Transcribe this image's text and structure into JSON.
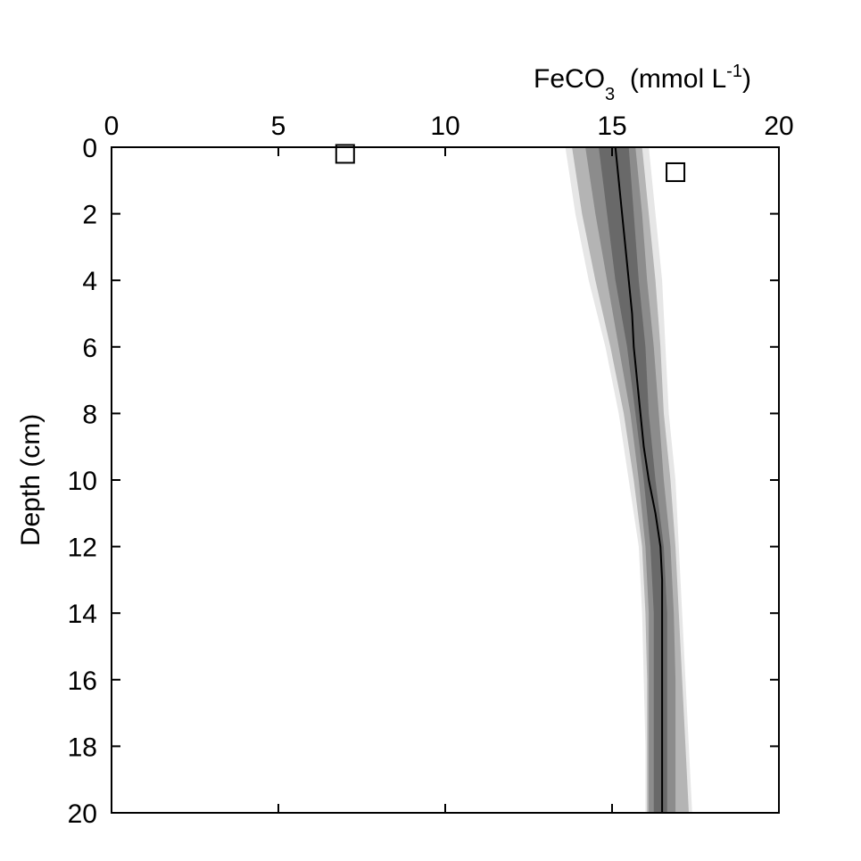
{
  "chart_data": {
    "type": "line",
    "title": "",
    "xlabel": {
      "main": "FeCO",
      "sub": "3",
      "mid": "  (mmol L",
      "sup": "-1",
      "end": ")"
    },
    "ylabel": "Depth (cm)",
    "xlim": [
      0,
      20
    ],
    "ylim": [
      0,
      20
    ],
    "y_inverted": true,
    "x_axis_position": "top",
    "xticks": [
      "0",
      "5",
      "10",
      "15",
      "20"
    ],
    "yticks": [
      "0",
      "2",
      "4",
      "6",
      "8",
      "10",
      "12",
      "14",
      "16",
      "18",
      "20"
    ],
    "grid": false,
    "colors": {
      "line": "#000000",
      "band_outer": "#e6e6e6",
      "band_mid": "#b4b4b4",
      "band_inner1": "#8c8c8c",
      "band_inner2": "#696969",
      "marker": "#000000"
    },
    "series": [
      {
        "kind": "line",
        "depth": [
          0,
          1,
          2,
          3,
          4,
          5,
          6,
          7,
          8,
          9,
          10,
          11,
          12,
          13,
          14,
          15,
          16,
          17,
          18,
          19,
          20
        ],
        "value": [
          15.1,
          15.2,
          15.3,
          15.4,
          15.5,
          15.6,
          15.65,
          15.75,
          15.85,
          15.95,
          16.1,
          16.3,
          16.45,
          16.5,
          16.5,
          16.5,
          16.5,
          16.5,
          16.5,
          16.5,
          16.5
        ]
      },
      {
        "kind": "band",
        "level": "outer",
        "depth": [
          0,
          2,
          4,
          6,
          8,
          10,
          12,
          14,
          16,
          18,
          20
        ],
        "lower": [
          13.6,
          13.9,
          14.3,
          14.8,
          15.2,
          15.5,
          15.8,
          15.9,
          15.95,
          16.0,
          16.0
        ],
        "upper": [
          16.1,
          16.3,
          16.5,
          16.6,
          16.7,
          16.9,
          17.0,
          17.1,
          17.2,
          17.3,
          17.4
        ]
      },
      {
        "kind": "band",
        "level": "mid",
        "depth": [
          0,
          2,
          4,
          6,
          8,
          10,
          12,
          14,
          16,
          18,
          20
        ],
        "lower": [
          13.8,
          14.1,
          14.5,
          14.95,
          15.35,
          15.65,
          15.9,
          16.0,
          16.05,
          16.05,
          16.05
        ],
        "upper": [
          15.9,
          16.1,
          16.3,
          16.45,
          16.55,
          16.75,
          16.9,
          17.0,
          17.1,
          17.2,
          17.3
        ]
      },
      {
        "kind": "band",
        "level": "inner1",
        "depth": [
          0,
          2,
          4,
          6,
          8,
          10,
          12,
          14,
          16,
          18,
          20
        ],
        "lower": [
          14.2,
          14.5,
          14.85,
          15.2,
          15.55,
          15.8,
          16.0,
          16.1,
          16.1,
          16.1,
          16.1
        ],
        "upper": [
          15.7,
          15.9,
          16.05,
          16.25,
          16.4,
          16.55,
          16.75,
          16.85,
          16.9,
          16.9,
          16.9
        ]
      },
      {
        "kind": "band",
        "level": "inner2",
        "depth": [
          0,
          2,
          4,
          6,
          8,
          10,
          12,
          14,
          16,
          18,
          20
        ],
        "lower": [
          14.6,
          14.85,
          15.1,
          15.45,
          15.7,
          15.95,
          16.15,
          16.25,
          16.25,
          16.25,
          16.25
        ],
        "upper": [
          15.5,
          15.65,
          15.8,
          16.0,
          16.1,
          16.3,
          16.55,
          16.65,
          16.65,
          16.65,
          16.65
        ]
      },
      {
        "kind": "markers",
        "marker": "square-open",
        "points": [
          {
            "x": 7.0,
            "y": 0.2
          },
          {
            "x": 16.9,
            "y": 0.75
          }
        ]
      }
    ]
  }
}
